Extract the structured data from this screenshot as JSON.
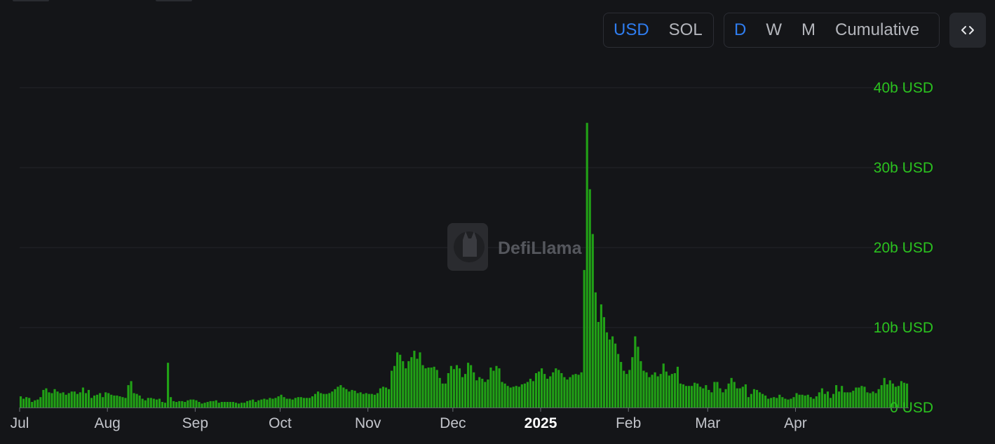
{
  "currency_toggle": {
    "options": [
      "USD",
      "SOL"
    ],
    "active": "USD"
  },
  "period_toggle": {
    "options": [
      "D",
      "W",
      "M",
      "Cumulative"
    ],
    "active": "D"
  },
  "embed_icon": "code-icon",
  "watermark": {
    "text": "DefiLlama"
  },
  "colors": {
    "bar": "#21a116",
    "axis_label": "#2bc21f",
    "active_toggle": "#2f7df0"
  },
  "chart_data": {
    "type": "bar",
    "title": "",
    "xlabel": "",
    "ylabel": "",
    "ylim": [
      0,
      40
    ],
    "y_unit": "b USD",
    "y_ticks": [
      {
        "value": 40,
        "label": "40b USD"
      },
      {
        "value": 30,
        "label": "30b USD"
      },
      {
        "value": 20,
        "label": "20b USD"
      },
      {
        "value": 10,
        "label": "10b USD"
      },
      {
        "value": 0,
        "label": "0 USD"
      }
    ],
    "x_ticks": [
      {
        "label": "Jul",
        "day": 1,
        "bold": false
      },
      {
        "label": "Aug",
        "day": 32,
        "bold": false
      },
      {
        "label": "Sep",
        "day": 63,
        "bold": false
      },
      {
        "label": "Oct",
        "day": 93,
        "bold": false
      },
      {
        "label": "Nov",
        "day": 124,
        "bold": false
      },
      {
        "label": "Dec",
        "day": 154,
        "bold": false
      },
      {
        "label": "2025",
        "day": 185,
        "bold": true
      },
      {
        "label": "Feb",
        "day": 216,
        "bold": false
      },
      {
        "label": "Mar",
        "day": 244,
        "bold": false
      },
      {
        "label": "Apr",
        "day": 275,
        "bold": false
      }
    ],
    "grid": true,
    "legend": "none",
    "values": [
      1.4,
      1.1,
      1.3,
      1.2,
      0.7,
      0.9,
      1.0,
      1.3,
      2.2,
      2.4,
      1.9,
      1.8,
      2.3,
      2.0,
      1.8,
      1.9,
      1.6,
      1.8,
      2.0,
      2.0,
      1.7,
      1.9,
      2.5,
      1.8,
      2.2,
      1.2,
      1.5,
      1.6,
      1.8,
      1.3,
      1.9,
      1.8,
      1.6,
      1.5,
      1.5,
      1.4,
      1.3,
      1.2,
      2.8,
      3.3,
      1.8,
      1.7,
      1.5,
      1.1,
      0.9,
      1.2,
      1.2,
      1.1,
      1.0,
      1.1,
      0.7,
      0.6,
      5.6,
      1.3,
      0.8,
      0.7,
      0.8,
      0.8,
      0.7,
      0.9,
      1.0,
      1.0,
      0.9,
      0.7,
      0.5,
      0.6,
      0.7,
      0.8,
      0.8,
      0.9,
      0.6,
      0.7,
      0.7,
      0.7,
      0.7,
      0.7,
      0.6,
      0.5,
      0.6,
      0.6,
      0.8,
      0.9,
      1.0,
      0.7,
      0.9,
      1.0,
      1.1,
      1.0,
      1.2,
      1.1,
      1.2,
      1.4,
      1.6,
      1.3,
      1.1,
      1.1,
      1.0,
      1.2,
      1.3,
      1.3,
      1.2,
      1.2,
      1.2,
      1.4,
      1.7,
      2.0,
      1.8,
      1.7,
      1.7,
      1.8,
      2.0,
      2.3,
      2.6,
      2.8,
      2.5,
      2.3,
      2.0,
      2.2,
      2.1,
      1.8,
      1.9,
      1.7,
      1.8,
      1.7,
      1.7,
      1.6,
      1.8,
      2.4,
      2.6,
      2.5,
      2.3,
      4.6,
      5.2,
      6.9,
      6.6,
      5.8,
      4.9,
      5.8,
      6.3,
      7.1,
      6.1,
      6.9,
      5.3,
      4.9,
      5.0,
      5.0,
      5.1,
      4.7,
      3.7,
      3.0,
      3.0,
      4.3,
      5.2,
      4.8,
      5.3,
      4.9,
      3.8,
      4.2,
      5.6,
      5.3,
      4.4,
      3.4,
      3.8,
      3.6,
      3.2,
      3.5,
      5.0,
      4.6,
      5.2,
      4.9,
      3.2,
      3.0,
      2.7,
      2.5,
      2.6,
      2.7,
      2.6,
      2.9,
      3.0,
      3.2,
      3.6,
      3.3,
      4.3,
      4.5,
      4.9,
      4.2,
      3.6,
      3.9,
      4.4,
      4.9,
      4.7,
      4.3,
      3.8,
      3.5,
      3.8,
      4.1,
      4.2,
      4.1,
      4.4,
      17.2,
      35.6,
      27.3,
      21.7,
      14.4,
      10.7,
      12.9,
      11.3,
      9.4,
      8.5,
      8.9,
      8.0,
      6.7,
      5.7,
      4.6,
      4.2,
      4.7,
      6.3,
      8.9,
      7.6,
      5.8,
      4.6,
      4.4,
      3.8,
      4.1,
      4.4,
      3.9,
      4.2,
      5.5,
      4.5,
      4.0,
      4.2,
      4.3,
      5.1,
      3.0,
      2.9,
      2.7,
      2.7,
      2.7,
      3.1,
      3.0,
      2.6,
      2.4,
      2.8,
      2.2,
      1.9,
      3.2,
      3.2,
      2.4,
      1.9,
      2.3,
      3.0,
      3.7,
      3.2,
      2.4,
      2.4,
      2.6,
      2.9,
      1.3,
      1.7,
      2.3,
      2.2,
      1.9,
      1.7,
      1.5,
      1.1,
      1.2,
      1.3,
      1.2,
      1.6,
      1.3,
      1.1,
      1.0,
      1.1,
      1.3,
      1.8,
      1.6,
      1.6,
      1.5,
      1.6,
      1.3,
      1.1,
      1.4,
      1.9,
      2.4,
      1.7,
      2.0,
      1.2,
      1.7,
      2.8,
      2.0,
      2.7,
      1.9,
      1.9,
      1.9,
      2.1,
      2.5,
      2.5,
      2.7,
      2.6,
      1.9,
      1.8,
      2.0,
      1.8,
      2.3,
      2.8,
      3.7,
      2.9,
      3.4,
      3.0,
      2.6,
      2.7,
      3.3,
      3.1,
      3.0
    ]
  }
}
